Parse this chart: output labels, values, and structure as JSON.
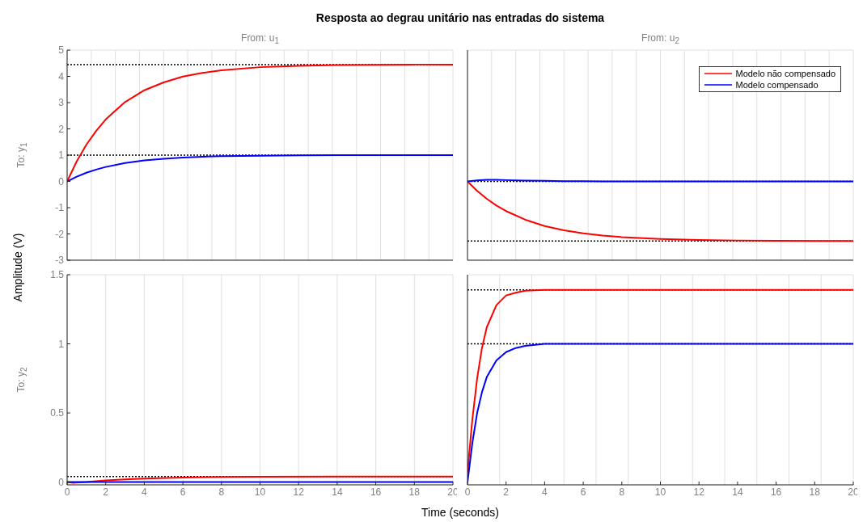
{
  "chart_data": [
    {
      "type": "line",
      "title": "Resposta ao degrau unitário nas entradas do sistema",
      "subtitle": "From: u$_{1}$",
      "ylabel": "To: y$_{1}$",
      "annotations": [
        "Amplitude (V)"
      ],
      "x": [
        0,
        0.5,
        1,
        1.5,
        2,
        3,
        4,
        5,
        6,
        7,
        8,
        10,
        12,
        14,
        16,
        18,
        20
      ],
      "series": [
        {
          "color": "#ff0000",
          "values": [
            0,
            0.77,
            1.4,
            1.92,
            2.36,
            3.02,
            3.47,
            3.77,
            3.99,
            4.13,
            4.23,
            4.35,
            4.4,
            4.43,
            4.44,
            4.45,
            4.45
          ]
        },
        {
          "color": "#0000ff",
          "values": [
            0,
            0.18,
            0.33,
            0.45,
            0.55,
            0.7,
            0.8,
            0.86,
            0.91,
            0.94,
            0.96,
            0.98,
            0.99,
            1,
            1,
            1,
            1
          ]
        }
      ],
      "xlim": [
        0,
        20
      ],
      "xticks": [
        0,
        2,
        4,
        6,
        8,
        10,
        12,
        14,
        16,
        18,
        20
      ],
      "ylim": [
        -3,
        5
      ],
      "yticks": [
        -3,
        -2,
        -1,
        0,
        1,
        2,
        3,
        4,
        5
      ],
      "grid": true,
      "tick_labels": "y",
      "ref_lines": [
        {
          "axis": "y",
          "value": 4.45,
          "color": "#000000",
          "line_style": "dotted"
        },
        {
          "axis": "y",
          "value": 1,
          "color": "#000000",
          "line_style": "dotted"
        }
      ]
    },
    {
      "type": "line",
      "subtitle": "From: u$_{2}$",
      "x": [
        0,
        0.5,
        1,
        1.5,
        2,
        3,
        4,
        5,
        6,
        7,
        8,
        10,
        12,
        14,
        16,
        18,
        20
      ],
      "series": [
        {
          "name": "Modelo não compensado",
          "color": "#ff0000",
          "values": [
            0,
            -0.36,
            -0.66,
            -0.92,
            -1.13,
            -1.46,
            -1.7,
            -1.86,
            -1.98,
            -2.06,
            -2.12,
            -2.19,
            -2.23,
            -2.25,
            -2.26,
            -2.27,
            -2.27
          ]
        },
        {
          "name": "Modelo compensado",
          "color": "#0000ff",
          "values": [
            0,
            0.04,
            0.06,
            0.06,
            0.05,
            0.03,
            0.02,
            0.01,
            0.01,
            0,
            0,
            0,
            0,
            0,
            0,
            0,
            0
          ]
        }
      ],
      "xlim": [
        0,
        20
      ],
      "xticks": [
        0,
        2,
        4,
        6,
        8,
        10,
        12,
        14,
        16,
        18,
        20
      ],
      "ylim": [
        -3,
        5
      ],
      "yticks": [
        -3,
        -2,
        -1,
        0,
        1,
        2,
        3,
        4,
        5
      ],
      "grid": true,
      "tick_labels": false,
      "legend": "top right",
      "ref_lines": [
        {
          "axis": "y",
          "value": -2.27,
          "color": "#000000",
          "line_style": "dotted"
        },
        {
          "axis": "y",
          "value": 0,
          "color": "#000000",
          "line_style": "dotted"
        }
      ]
    },
    {
      "type": "line",
      "ylabel": "To: y$_{2}$",
      "xlabel": "Time (seconds)",
      "x": [
        0,
        0.3,
        1,
        2,
        3,
        4,
        6,
        8,
        10,
        14,
        20
      ],
      "series": [
        {
          "color": "#ff0000",
          "values": [
            0,
            -0.005,
            0,
            0.012,
            0.02,
            0.026,
            0.033,
            0.037,
            0.039,
            0.04,
            0.04
          ]
        },
        {
          "color": "#0000ff",
          "values": [
            0,
            0,
            0,
            0,
            0,
            0,
            0,
            0,
            0,
            0,
            0
          ]
        }
      ],
      "xlim": [
        0,
        20
      ],
      "xticks": [
        0,
        2,
        4,
        6,
        8,
        10,
        12,
        14,
        16,
        18,
        20
      ],
      "ylim": [
        -0.02,
        1.5
      ],
      "yticks": [
        0,
        0.5,
        1,
        1.5
      ],
      "grid": true,
      "ref_lines": [
        {
          "axis": "y",
          "value": 0.04,
          "color": "#000000",
          "line_style": "dotted"
        }
      ]
    },
    {
      "type": "line",
      "x": [
        0,
        0.25,
        0.5,
        0.75,
        1,
        1.5,
        2,
        2.5,
        3,
        4,
        6,
        10,
        20
      ],
      "series": [
        {
          "color": "#ff0000",
          "values": [
            0.07,
            0.45,
            0.75,
            0.97,
            1.12,
            1.28,
            1.35,
            1.37,
            1.385,
            1.39,
            1.39,
            1.39,
            1.39
          ]
        },
        {
          "color": "#0000ff",
          "values": [
            0,
            0.28,
            0.5,
            0.65,
            0.76,
            0.88,
            0.94,
            0.97,
            0.985,
            1,
            1,
            1,
            1
          ]
        }
      ],
      "xlim": [
        0,
        20
      ],
      "xticks": [
        0,
        2,
        4,
        6,
        8,
        10,
        12,
        14,
        16,
        18,
        20
      ],
      "ylim": [
        -0.02,
        1.5
      ],
      "yticks": [
        0,
        0.5,
        1,
        1.5
      ],
      "grid": true,
      "tick_labels": "x",
      "ref_lines": [
        {
          "axis": "y",
          "value": 1.39,
          "color": "#000000",
          "line_style": "dotted"
        },
        {
          "axis": "y",
          "value": 1,
          "color": "#000000",
          "line_style": "dotted"
        }
      ]
    }
  ]
}
